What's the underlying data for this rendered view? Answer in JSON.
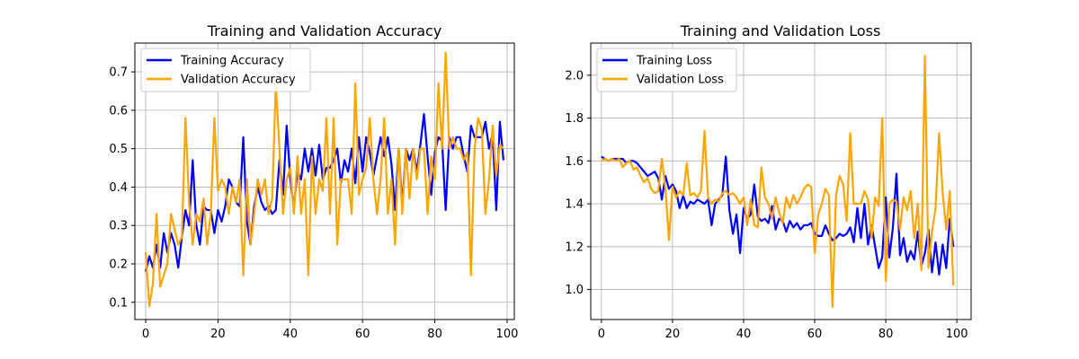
{
  "figure": {
    "background": "#ffffff"
  },
  "chart_data": [
    {
      "type": "line",
      "title": "Training and Validation Accuracy",
      "xlabel": "",
      "ylabel": "",
      "xlim": [
        -3,
        102
      ],
      "ylim": [
        0.055,
        0.775
      ],
      "xticks": [
        0,
        20,
        40,
        60,
        80,
        100
      ],
      "xtick_labels": [
        "0",
        "20",
        "40",
        "60",
        "80",
        "100"
      ],
      "yticks": [
        0.1,
        0.2,
        0.3,
        0.4,
        0.5,
        0.6,
        0.7
      ],
      "ytick_labels": [
        "0.1",
        "0.2",
        "0.3",
        "0.4",
        "0.5",
        "0.6",
        "0.7"
      ],
      "grid": true,
      "legend": "upper-left",
      "series": [
        {
          "name": "Training Accuracy",
          "color": "#0000ff",
          "values": [
            0.18,
            0.22,
            0.19,
            0.25,
            0.19,
            0.28,
            0.23,
            0.28,
            0.25,
            0.19,
            0.27,
            0.34,
            0.3,
            0.47,
            0.3,
            0.25,
            0.35,
            0.34,
            0.34,
            0.28,
            0.34,
            0.31,
            0.35,
            0.42,
            0.4,
            0.36,
            0.35,
            0.53,
            0.31,
            0.25,
            0.35,
            0.4,
            0.36,
            0.34,
            0.35,
            0.33,
            0.34,
            0.47,
            0.38,
            0.56,
            0.42,
            0.35,
            0.44,
            0.42,
            0.5,
            0.44,
            0.5,
            0.43,
            0.51,
            0.42,
            0.45,
            0.45,
            0.47,
            0.5,
            0.41,
            0.47,
            0.44,
            0.5,
            0.41,
            0.53,
            0.44,
            0.53,
            0.49,
            0.43,
            0.48,
            0.53,
            0.48,
            0.53,
            0.46,
            0.34,
            0.5,
            0.35,
            0.5,
            0.47,
            0.5,
            0.44,
            0.51,
            0.59,
            0.48,
            0.38,
            0.49,
            0.53,
            0.52,
            0.34,
            0.53,
            0.5,
            0.53,
            0.53,
            0.48,
            0.44,
            0.56,
            0.53,
            0.53,
            0.53,
            0.57,
            0.5,
            0.54,
            0.34,
            0.57,
            0.47
          ]
        },
        {
          "name": "Validation Accuracy",
          "color": "#ffa500",
          "values": [
            0.23,
            0.09,
            0.15,
            0.33,
            0.14,
            0.17,
            0.2,
            0.33,
            0.29,
            0.25,
            0.27,
            0.58,
            0.36,
            0.25,
            0.33,
            0.31,
            0.37,
            0.25,
            0.33,
            0.58,
            0.39,
            0.42,
            0.4,
            0.33,
            0.4,
            0.36,
            0.42,
            0.17,
            0.42,
            0.25,
            0.33,
            0.42,
            0.38,
            0.42,
            0.33,
            0.37,
            0.67,
            0.5,
            0.33,
            0.42,
            0.45,
            0.33,
            0.48,
            0.33,
            0.42,
            0.17,
            0.48,
            0.33,
            0.42,
            0.39,
            0.58,
            0.33,
            0.58,
            0.25,
            0.42,
            0.42,
            0.42,
            0.33,
            0.67,
            0.38,
            0.42,
            0.45,
            0.58,
            0.42,
            0.33,
            0.42,
            0.58,
            0.33,
            0.42,
            0.25,
            0.5,
            0.33,
            0.5,
            0.37,
            0.5,
            0.42,
            0.5,
            0.5,
            0.33,
            0.48,
            0.42,
            0.67,
            0.5,
            0.75,
            0.5,
            0.53,
            0.5,
            0.5,
            0.47,
            0.49,
            0.17,
            0.5,
            0.58,
            0.55,
            0.33,
            0.42,
            0.56,
            0.43,
            0.51,
            0.5
          ]
        }
      ]
    },
    {
      "type": "line",
      "title": "Training and Validation Loss",
      "xlabel": "",
      "ylabel": "",
      "xlim": [
        -3,
        104
      ],
      "ylim": [
        0.86,
        2.15
      ],
      "xticks": [
        0,
        20,
        40,
        60,
        80,
        100
      ],
      "xtick_labels": [
        "0",
        "20",
        "40",
        "60",
        "80",
        "100"
      ],
      "yticks": [
        1.0,
        1.2,
        1.4,
        1.6,
        1.8,
        2.0
      ],
      "ytick_labels": [
        "1.0",
        "1.2",
        "1.4",
        "1.6",
        "1.8",
        "2.0"
      ],
      "grid": true,
      "legend": "upper-left",
      "series": [
        {
          "name": "Training Loss",
          "color": "#0000ff",
          "values": [
            1.62,
            1.61,
            1.6,
            1.61,
            1.61,
            1.61,
            1.61,
            1.59,
            1.6,
            1.6,
            1.59,
            1.57,
            1.55,
            1.53,
            1.54,
            1.55,
            1.52,
            1.42,
            1.53,
            1.47,
            1.49,
            1.46,
            1.38,
            1.44,
            1.38,
            1.41,
            1.4,
            1.42,
            1.41,
            1.4,
            1.42,
            1.3,
            1.4,
            1.42,
            1.44,
            1.62,
            1.37,
            1.26,
            1.35,
            1.17,
            1.38,
            1.33,
            1.35,
            1.49,
            1.34,
            1.32,
            1.33,
            1.31,
            1.39,
            1.28,
            1.33,
            1.32,
            1.27,
            1.32,
            1.29,
            1.31,
            1.28,
            1.3,
            1.3,
            1.31,
            1.26,
            1.25,
            1.25,
            1.3,
            1.26,
            1.23,
            1.24,
            1.26,
            1.25,
            1.26,
            1.29,
            1.22,
            1.38,
            1.24,
            1.4,
            1.21,
            1.3,
            1.2,
            1.1,
            1.15,
            1.43,
            1.15,
            1.29,
            1.54,
            1.16,
            1.24,
            1.13,
            1.18,
            1.14,
            1.27,
            1.11,
            1.17,
            1.28,
            1.08,
            1.22,
            1.07,
            1.21,
            1.1,
            1.33,
            1.2
          ]
        },
        {
          "name": "Validation Loss",
          "color": "#ffa500",
          "values": [
            1.6,
            1.61,
            1.6,
            1.61,
            1.6,
            1.61,
            1.57,
            1.59,
            1.6,
            1.56,
            1.57,
            1.53,
            1.5,
            1.52,
            1.47,
            1.45,
            1.46,
            1.61,
            1.47,
            1.23,
            1.48,
            1.43,
            1.46,
            1.44,
            1.59,
            1.44,
            1.45,
            1.43,
            1.46,
            1.74,
            1.43,
            1.4,
            1.42,
            1.41,
            1.45,
            1.46,
            1.44,
            1.45,
            1.43,
            1.4,
            1.43,
            1.3,
            1.42,
            1.3,
            1.29,
            1.57,
            1.43,
            1.4,
            1.33,
            1.43,
            1.36,
            1.31,
            1.43,
            1.38,
            1.44,
            1.4,
            1.43,
            1.47,
            1.49,
            1.48,
            1.17,
            1.35,
            1.4,
            1.47,
            1.44,
            0.92,
            1.44,
            1.53,
            1.49,
            1.32,
            1.73,
            1.4,
            1.4,
            1.4,
            1.46,
            1.42,
            1.24,
            1.43,
            1.39,
            1.8,
            1.04,
            1.4,
            1.42,
            1.41,
            1.28,
            1.43,
            1.37,
            1.46,
            1.24,
            1.4,
            1.09,
            2.09,
            1.1,
            1.27,
            1.38,
            1.73,
            1.45,
            1.28,
            1.46,
            1.02
          ]
        }
      ]
    }
  ]
}
